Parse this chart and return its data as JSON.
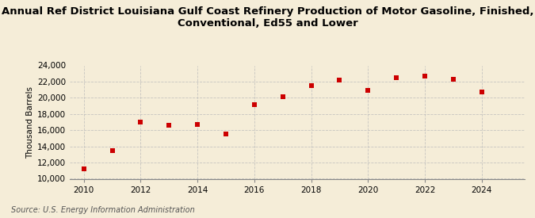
{
  "title_line1": "Annual Ref District Louisiana Gulf Coast Refinery Production of Motor Gasoline, Finished,",
  "title_line2": "Conventional, Ed55 and Lower",
  "ylabel": "Thousand Barrels",
  "source": "Source: U.S. Energy Information Administration",
  "years": [
    2010,
    2011,
    2012,
    2013,
    2014,
    2015,
    2016,
    2017,
    2018,
    2019,
    2020,
    2021,
    2022,
    2023,
    2024
  ],
  "values": [
    11200,
    13500,
    17000,
    16600,
    16700,
    15500,
    19200,
    20100,
    21500,
    22200,
    20900,
    22500,
    22700,
    22300,
    20700
  ],
  "marker_color": "#CC0000",
  "marker": "s",
  "marker_size": 4,
  "ylim": [
    10000,
    24000
  ],
  "yticks": [
    10000,
    12000,
    14000,
    16000,
    18000,
    20000,
    22000,
    24000
  ],
  "xticks": [
    2010,
    2012,
    2014,
    2016,
    2018,
    2020,
    2022,
    2024
  ],
  "xlim": [
    2009.5,
    2025.5
  ],
  "background_color": "#F5EDD8",
  "grid_color": "#BBBBBB",
  "title_fontsize": 9.5,
  "axis_fontsize": 7.5,
  "source_fontsize": 7
}
